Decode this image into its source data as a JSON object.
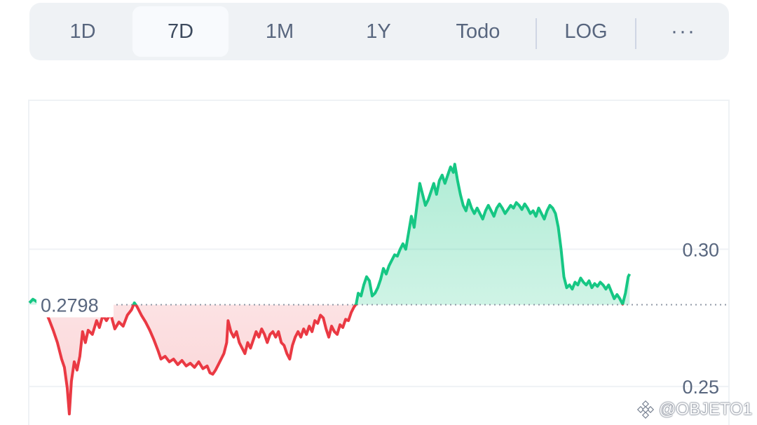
{
  "tabs": [
    {
      "label": "1D",
      "active": false
    },
    {
      "label": "7D",
      "active": true
    },
    {
      "label": "1M",
      "active": false
    },
    {
      "label": "1Y",
      "active": false
    },
    {
      "label": "Todo",
      "active": false
    },
    {
      "label": "LOG",
      "active": false
    }
  ],
  "more_label": "···",
  "watermark": "@OBJETO1",
  "colors": {
    "up": "#16c784",
    "down": "#ea3943",
    "grid": "#eff2f5"
  },
  "chart_data": {
    "type": "area",
    "reference_value": 0.2798,
    "reference_label": "0.2798",
    "y_ticks": [
      0.3,
      0.25
    ],
    "y_tick_labels": [
      "0.30",
      "0.25"
    ],
    "ylim": [
      0.236,
      0.354
    ],
    "grid": true,
    "points": [
      [
        0.0,
        0.2805
      ],
      [
        0.005,
        0.2818
      ],
      [
        0.01,
        0.281
      ],
      [
        0.016,
        0.2795
      ],
      [
        0.022,
        0.2778
      ],
      [
        0.028,
        0.2745
      ],
      [
        0.034,
        0.2705
      ],
      [
        0.04,
        0.266
      ],
      [
        0.046,
        0.26
      ],
      [
        0.05,
        0.257
      ],
      [
        0.054,
        0.2495
      ],
      [
        0.057,
        0.24
      ],
      [
        0.06,
        0.252
      ],
      [
        0.064,
        0.259
      ],
      [
        0.068,
        0.256
      ],
      [
        0.072,
        0.261
      ],
      [
        0.076,
        0.27
      ],
      [
        0.08,
        0.266
      ],
      [
        0.084,
        0.2705
      ],
      [
        0.09,
        0.269
      ],
      [
        0.096,
        0.274
      ],
      [
        0.1,
        0.2715
      ],
      [
        0.105,
        0.276
      ],
      [
        0.11,
        0.274
      ],
      [
        0.116,
        0.2765
      ],
      [
        0.122,
        0.271
      ],
      [
        0.128,
        0.2735
      ],
      [
        0.134,
        0.272
      ],
      [
        0.14,
        0.276
      ],
      [
        0.146,
        0.278
      ],
      [
        0.15,
        0.2805
      ],
      [
        0.154,
        0.279
      ],
      [
        0.16,
        0.276
      ],
      [
        0.166,
        0.2735
      ],
      [
        0.172,
        0.2705
      ],
      [
        0.178,
        0.267
      ],
      [
        0.184,
        0.263
      ],
      [
        0.188,
        0.26
      ],
      [
        0.194,
        0.261
      ],
      [
        0.2,
        0.259
      ],
      [
        0.206,
        0.26
      ],
      [
        0.212,
        0.258
      ],
      [
        0.218,
        0.2595
      ],
      [
        0.224,
        0.2575
      ],
      [
        0.23,
        0.2585
      ],
      [
        0.236,
        0.257
      ],
      [
        0.242,
        0.259
      ],
      [
        0.248,
        0.2565
      ],
      [
        0.254,
        0.2575
      ],
      [
        0.258,
        0.255
      ],
      [
        0.262,
        0.2545
      ],
      [
        0.266,
        0.256
      ],
      [
        0.27,
        0.258
      ],
      [
        0.274,
        0.26
      ],
      [
        0.278,
        0.262
      ],
      [
        0.282,
        0.266
      ],
      [
        0.284,
        0.274
      ],
      [
        0.288,
        0.27
      ],
      [
        0.292,
        0.268
      ],
      [
        0.296,
        0.27
      ],
      [
        0.3,
        0.266
      ],
      [
        0.304,
        0.264
      ],
      [
        0.308,
        0.262
      ],
      [
        0.312,
        0.266
      ],
      [
        0.316,
        0.264
      ],
      [
        0.32,
        0.267
      ],
      [
        0.324,
        0.27
      ],
      [
        0.328,
        0.268
      ],
      [
        0.332,
        0.271
      ],
      [
        0.336,
        0.269
      ],
      [
        0.34,
        0.266
      ],
      [
        0.344,
        0.269
      ],
      [
        0.348,
        0.27
      ],
      [
        0.352,
        0.268
      ],
      [
        0.356,
        0.27
      ],
      [
        0.36,
        0.266
      ],
      [
        0.364,
        0.265
      ],
      [
        0.368,
        0.262
      ],
      [
        0.372,
        0.26
      ],
      [
        0.376,
        0.265
      ],
      [
        0.38,
        0.268
      ],
      [
        0.384,
        0.27
      ],
      [
        0.388,
        0.268
      ],
      [
        0.392,
        0.271
      ],
      [
        0.396,
        0.269
      ],
      [
        0.4,
        0.272
      ],
      [
        0.404,
        0.27
      ],
      [
        0.408,
        0.274
      ],
      [
        0.412,
        0.273
      ],
      [
        0.416,
        0.276
      ],
      [
        0.42,
        0.275
      ],
      [
        0.424,
        0.271
      ],
      [
        0.428,
        0.268
      ],
      [
        0.432,
        0.272
      ],
      [
        0.436,
        0.27
      ],
      [
        0.44,
        0.269
      ],
      [
        0.444,
        0.2725
      ],
      [
        0.448,
        0.2715
      ],
      [
        0.452,
        0.2745
      ],
      [
        0.456,
        0.274
      ],
      [
        0.46,
        0.277
      ],
      [
        0.464,
        0.279
      ],
      [
        0.467,
        0.28
      ],
      [
        0.47,
        0.284
      ],
      [
        0.474,
        0.283
      ],
      [
        0.478,
        0.287
      ],
      [
        0.482,
        0.29
      ],
      [
        0.486,
        0.2885
      ],
      [
        0.49,
        0.283
      ],
      [
        0.494,
        0.284
      ],
      [
        0.498,
        0.286
      ],
      [
        0.502,
        0.289
      ],
      [
        0.506,
        0.293
      ],
      [
        0.51,
        0.291
      ],
      [
        0.514,
        0.294
      ],
      [
        0.518,
        0.296
      ],
      [
        0.522,
        0.298
      ],
      [
        0.526,
        0.2975
      ],
      [
        0.53,
        0.3
      ],
      [
        0.534,
        0.302
      ],
      [
        0.538,
        0.3
      ],
      [
        0.542,
        0.306
      ],
      [
        0.546,
        0.312
      ],
      [
        0.55,
        0.308
      ],
      [
        0.554,
        0.316
      ],
      [
        0.558,
        0.324
      ],
      [
        0.562,
        0.32
      ],
      [
        0.566,
        0.316
      ],
      [
        0.57,
        0.318
      ],
      [
        0.574,
        0.321
      ],
      [
        0.578,
        0.324
      ],
      [
        0.582,
        0.32
      ],
      [
        0.586,
        0.325
      ],
      [
        0.59,
        0.327
      ],
      [
        0.594,
        0.324
      ],
      [
        0.598,
        0.327
      ],
      [
        0.602,
        0.33
      ],
      [
        0.606,
        0.328
      ],
      [
        0.608,
        0.331
      ],
      [
        0.612,
        0.325
      ],
      [
        0.616,
        0.32
      ],
      [
        0.62,
        0.316
      ],
      [
        0.624,
        0.314
      ],
      [
        0.628,
        0.318
      ],
      [
        0.632,
        0.315
      ],
      [
        0.636,
        0.313
      ],
      [
        0.64,
        0.315
      ],
      [
        0.644,
        0.313
      ],
      [
        0.648,
        0.311
      ],
      [
        0.652,
        0.314
      ],
      [
        0.656,
        0.316
      ],
      [
        0.66,
        0.314
      ],
      [
        0.664,
        0.312
      ],
      [
        0.668,
        0.315
      ],
      [
        0.672,
        0.3165
      ],
      [
        0.676,
        0.315
      ],
      [
        0.68,
        0.313
      ],
      [
        0.684,
        0.3145
      ],
      [
        0.688,
        0.316
      ],
      [
        0.692,
        0.315
      ],
      [
        0.696,
        0.317
      ],
      [
        0.7,
        0.316
      ],
      [
        0.704,
        0.3145
      ],
      [
        0.708,
        0.3165
      ],
      [
        0.712,
        0.315
      ],
      [
        0.716,
        0.313
      ],
      [
        0.72,
        0.314
      ],
      [
        0.724,
        0.312
      ],
      [
        0.728,
        0.315
      ],
      [
        0.732,
        0.313
      ],
      [
        0.736,
        0.311
      ],
      [
        0.74,
        0.314
      ],
      [
        0.744,
        0.316
      ],
      [
        0.748,
        0.315
      ],
      [
        0.752,
        0.313
      ],
      [
        0.756,
        0.308
      ],
      [
        0.76,
        0.3
      ],
      [
        0.764,
        0.29
      ],
      [
        0.768,
        0.286
      ],
      [
        0.772,
        0.287
      ],
      [
        0.776,
        0.2855
      ],
      [
        0.78,
        0.288
      ],
      [
        0.784,
        0.287
      ],
      [
        0.788,
        0.2895
      ],
      [
        0.792,
        0.288
      ],
      [
        0.796,
        0.287
      ],
      [
        0.8,
        0.2885
      ],
      [
        0.804,
        0.286
      ],
      [
        0.808,
        0.2875
      ],
      [
        0.812,
        0.2865
      ],
      [
        0.816,
        0.288
      ],
      [
        0.82,
        0.287
      ],
      [
        0.824,
        0.2855
      ],
      [
        0.828,
        0.287
      ],
      [
        0.832,
        0.2845
      ],
      [
        0.836,
        0.282
      ],
      [
        0.84,
        0.2835
      ],
      [
        0.844,
        0.282
      ],
      [
        0.848,
        0.28
      ],
      [
        0.852,
        0.284
      ],
      [
        0.856,
        0.29
      ],
      [
        0.858,
        0.291
      ]
    ]
  }
}
